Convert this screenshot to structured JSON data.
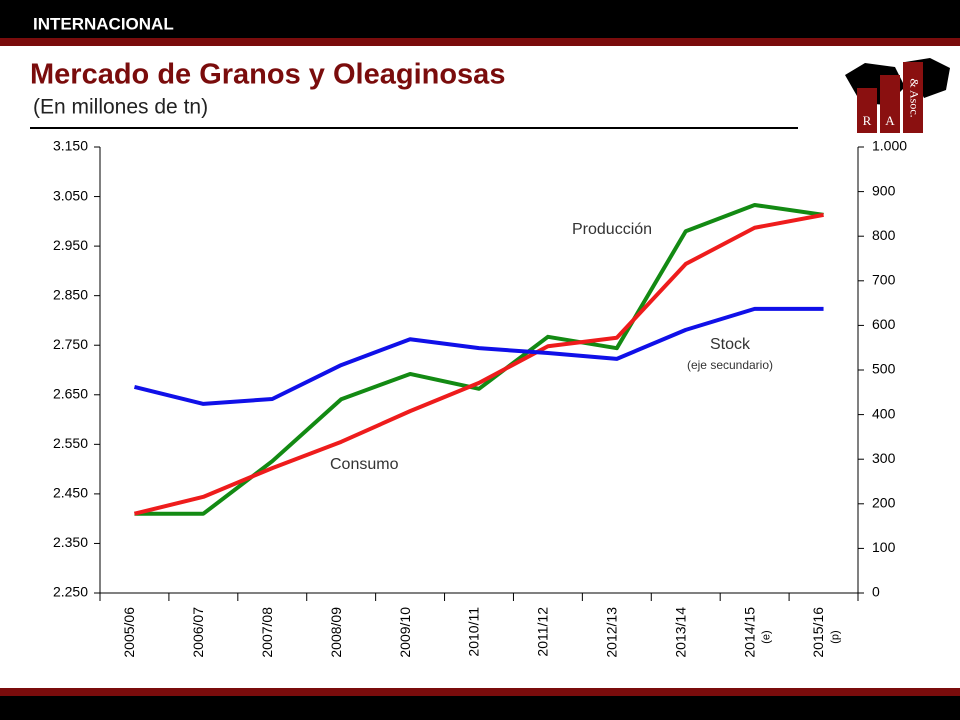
{
  "header": {
    "section": "INTERNACIONAL",
    "logo": [
      "R",
      "A",
      "& Asoc."
    ]
  },
  "chart_data": {
    "type": "line",
    "title": "Mercado de Granos y Oleaginosas",
    "subtitle": "(En millones de tn)",
    "categories": [
      "2005/06",
      "2006/07",
      "2007/08",
      "2008/09",
      "2009/10",
      "2010/11",
      "2011/12",
      "2012/13",
      "2013/14",
      "2014/15",
      "2015/16"
    ],
    "category_notes": [
      null,
      null,
      null,
      null,
      null,
      null,
      null,
      null,
      null,
      "(e)",
      "(p)"
    ],
    "series": [
      {
        "name": "Producción",
        "color": "#138a13",
        "values": [
          2410,
          2410,
          2516,
          2641,
          2692,
          2662,
          2767,
          2744,
          2980,
          3033,
          3013
        ]
      },
      {
        "name": "Consumo",
        "color": "#ee1c1c",
        "values": [
          2410,
          2444,
          2502,
          2555,
          2617,
          2674,
          2748,
          2765,
          2914,
          2987,
          3013
        ]
      },
      {
        "name": "Stock",
        "color": "#1010e8",
        "axis": "y2",
        "values": [
          462,
          424,
          435,
          511,
          569,
          549,
          538,
          525,
          590,
          637,
          637
        ]
      }
    ],
    "annotations": [
      "(eje secundario)"
    ],
    "ylim": [
      2250,
      3150
    ],
    "yticks": [
      {
        "value": 2250,
        "label": "2.250"
      },
      {
        "value": 2350,
        "label": "2.350"
      },
      {
        "value": 2450,
        "label": "2.450"
      },
      {
        "value": 2550,
        "label": "2.550"
      },
      {
        "value": 2650,
        "label": "2.650"
      },
      {
        "value": 2750,
        "label": "2.750"
      },
      {
        "value": 2850,
        "label": "2.850"
      },
      {
        "value": 2950,
        "label": "2.950"
      },
      {
        "value": 3050,
        "label": "3.050"
      },
      {
        "value": 3150,
        "label": "3.150"
      }
    ],
    "y2lim": [
      0,
      1000
    ],
    "y2ticks": [
      0,
      100,
      200,
      300,
      400,
      500,
      600,
      700,
      800,
      900,
      {
        "value": 1000,
        "label": "1.000"
      }
    ],
    "grid": false
  }
}
